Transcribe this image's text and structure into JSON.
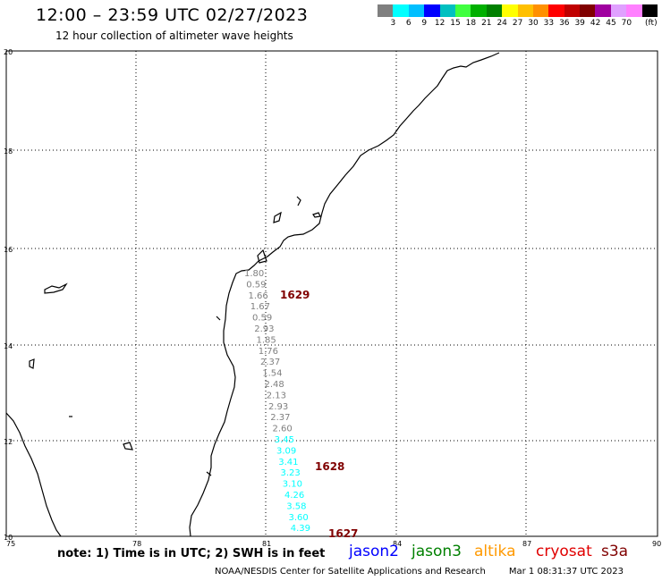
{
  "header": {
    "title": "12:00 – 23:59 UTC 02/27/2023",
    "subtitle": "12 hour collection of altimeter wave heights"
  },
  "colorbar": {
    "colors": [
      "#7f7f7f",
      "#00ffff",
      "#00bfff",
      "#0000ff",
      "#00c0c0",
      "#40ff40",
      "#00b000",
      "#008000",
      "#ffff00",
      "#ffc000",
      "#ff9000",
      "#ff0000",
      "#c00000",
      "#800000",
      "#a000a0",
      "#e0a0ff",
      "#ff80ff",
      "#000000"
    ],
    "labels": [
      "3",
      "6",
      "9",
      "12",
      "15",
      "18",
      "21",
      "24",
      "27",
      "30",
      "33",
      "36",
      "39",
      "42",
      "45",
      "70",
      "(ft)"
    ]
  },
  "axes": {
    "x_ticks": [
      "75",
      "78",
      "81",
      "84",
      "87",
      "90"
    ],
    "y_ticks": [
      "20",
      "18",
      "16",
      "14",
      "12",
      "10"
    ]
  },
  "passes": [
    {
      "id": "1629"
    },
    {
      "id": "1628"
    },
    {
      "id": "1627"
    }
  ],
  "wave_heights": [
    {
      "value": "1.80",
      "color": "#7f7f7f"
    },
    {
      "value": "0.59",
      "color": "#7f7f7f"
    },
    {
      "value": "1.66",
      "color": "#7f7f7f"
    },
    {
      "value": "1.67",
      "color": "#7f7f7f"
    },
    {
      "value": "0.59",
      "color": "#7f7f7f"
    },
    {
      "value": "2.93",
      "color": "#7f7f7f"
    },
    {
      "value": "1.85",
      "color": "#7f7f7f"
    },
    {
      "value": "1.76",
      "color": "#7f7f7f"
    },
    {
      "value": "2.37",
      "color": "#7f7f7f"
    },
    {
      "value": "1.54",
      "color": "#7f7f7f"
    },
    {
      "value": "2.48",
      "color": "#7f7f7f"
    },
    {
      "value": "2.13",
      "color": "#7f7f7f"
    },
    {
      "value": "2.93",
      "color": "#7f7f7f"
    },
    {
      "value": "2.37",
      "color": "#7f7f7f"
    },
    {
      "value": "2.60",
      "color": "#7f7f7f"
    },
    {
      "value": "3.45",
      "color": "#00ffff"
    },
    {
      "value": "3.09",
      "color": "#00ffff"
    },
    {
      "value": "3.41",
      "color": "#00ffff"
    },
    {
      "value": "3.23",
      "color": "#00ffff"
    },
    {
      "value": "3.10",
      "color": "#00ffff"
    },
    {
      "value": "4.26",
      "color": "#00ffff"
    },
    {
      "value": "3.58",
      "color": "#00ffff"
    },
    {
      "value": "3.60",
      "color": "#00ffff"
    },
    {
      "value": "4.39",
      "color": "#00ffff"
    }
  ],
  "footer": {
    "note": "note:  1) Time is in UTC;  2) SWH is in feet",
    "satellites": [
      {
        "name": "jason2",
        "color": "#0000ff"
      },
      {
        "name": "jason3",
        "color": "#008000"
      },
      {
        "name": "altika",
        "color": "#ff9900"
      },
      {
        "name": "cryosat",
        "color": "#e00000"
      },
      {
        "name": "s3a",
        "color": "#800000"
      }
    ],
    "credit": "NOAA/NESDIS Center for Satellite Applications and Research",
    "timestamp": "Mar  1 08:31:37 UTC 2023"
  }
}
